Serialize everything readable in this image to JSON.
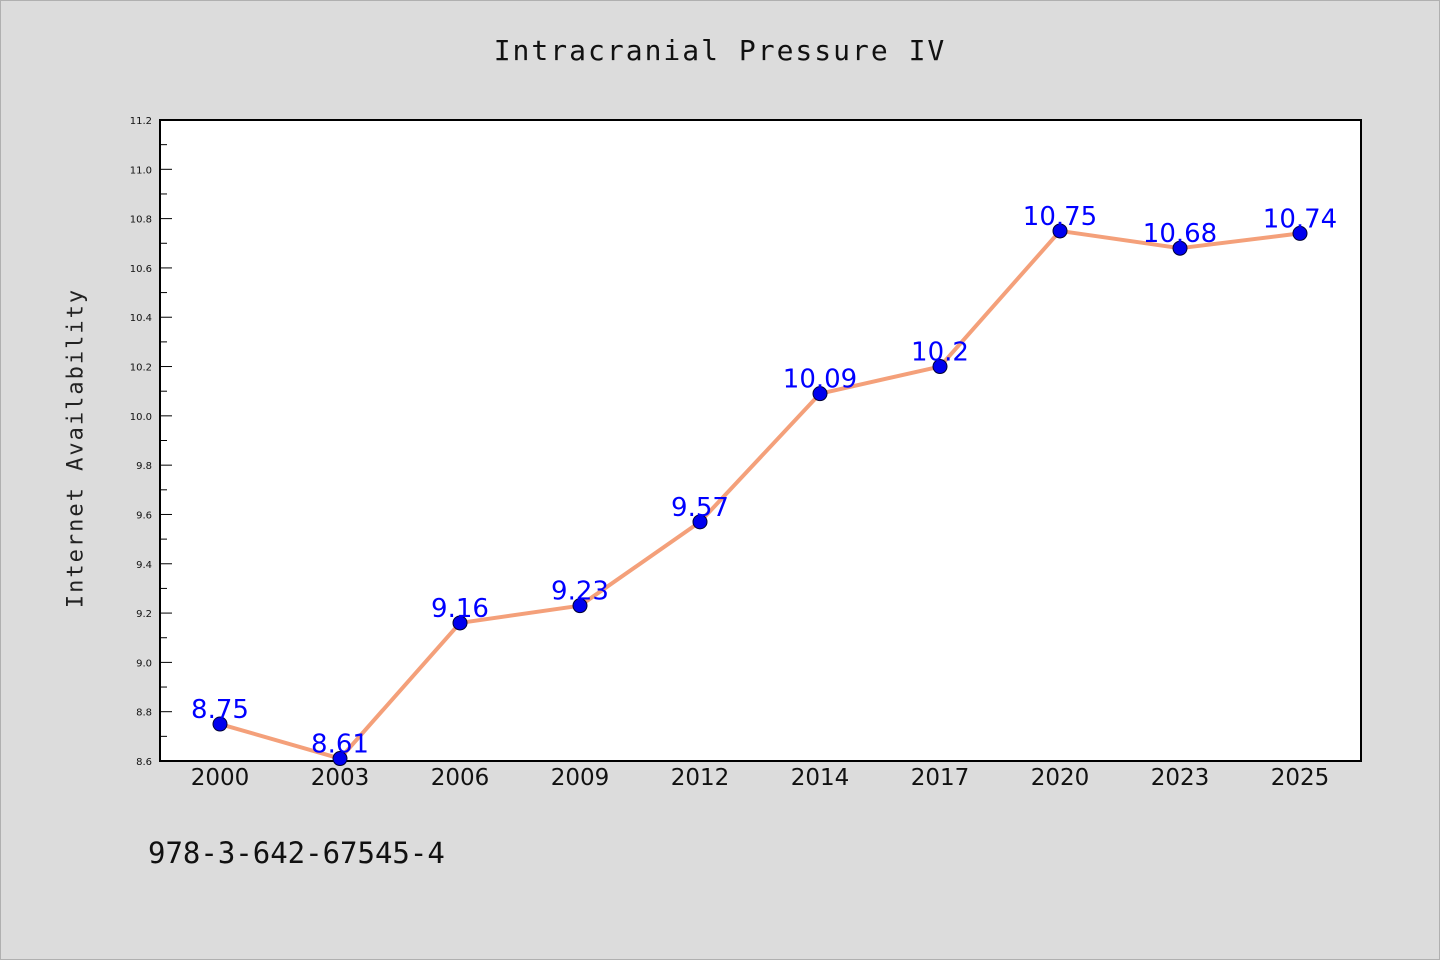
{
  "chart_data": {
    "type": "line",
    "title": "Intracranial Pressure IV",
    "xlabel": "",
    "ylabel": "Internet Availability",
    "categories": [
      "2000",
      "2003",
      "2006",
      "2009",
      "2012",
      "2014",
      "2017",
      "2020",
      "2023",
      "2025"
    ],
    "series": [
      {
        "values": [
          8.75,
          8.61,
          9.16,
          9.23,
          9.57,
          10.09,
          10.2,
          10.75,
          10.68,
          10.74
        ],
        "data_labels": [
          "8.75",
          "8.61",
          "9.16",
          "9.23",
          "9.57",
          "10.09",
          "10.2",
          "10.75",
          "10.68",
          "10.74"
        ],
        "line_color": "#f4a07a",
        "marker_color": "#0000ee",
        "label_color": "#0000ff"
      }
    ],
    "ylim": [
      8.6,
      11.2
    ],
    "yticks": [
      "8.6",
      "8.8",
      "9.0",
      "9.2",
      "9.4",
      "9.6",
      "9.8",
      "10.0",
      "10.2",
      "10.4",
      "10.6",
      "10.8",
      "11.0",
      "11.2"
    ],
    "grid": false,
    "legend": "none"
  },
  "footer": {
    "isbn": "978-3-642-67545-4"
  }
}
